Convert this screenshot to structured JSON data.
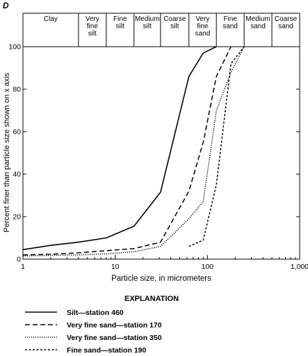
{
  "panel_label": "D",
  "chart_data": {
    "type": "line",
    "xscale": "log",
    "xlim": [
      1,
      1000
    ],
    "ylim": [
      0,
      100
    ],
    "xlabel": "Particle size, in micrometers",
    "ylabel": "Percent finer than particle size shown on x axis",
    "xticks": [
      {
        "value": 1,
        "label": "1"
      },
      {
        "value": 10,
        "label": "10"
      },
      {
        "value": 100,
        "label": "100"
      },
      {
        "value": 1000,
        "label": "1,000"
      }
    ],
    "yticks": [
      0,
      20,
      40,
      60,
      80,
      100
    ],
    "size_classes": [
      {
        "lines": [
          "Clay"
        ],
        "from": 1,
        "to": 4
      },
      {
        "lines": [
          "Very",
          "fine",
          "silt"
        ],
        "from": 4,
        "to": 8
      },
      {
        "lines": [
          "Fine",
          "silt"
        ],
        "from": 8,
        "to": 16
      },
      {
        "lines": [
          "Medium",
          "silt"
        ],
        "from": 16,
        "to": 31
      },
      {
        "lines": [
          "Coarse",
          "silt"
        ],
        "from": 31,
        "to": 63
      },
      {
        "lines": [
          "Very",
          "fine",
          "sand"
        ],
        "from": 63,
        "to": 125
      },
      {
        "lines": [
          "Fine",
          "sand"
        ],
        "from": 125,
        "to": 250
      },
      {
        "lines": [
          "Medium",
          "sand"
        ],
        "from": 250,
        "to": 500
      },
      {
        "lines": [
          "Coarse",
          "sand"
        ],
        "from": 500,
        "to": 1000
      }
    ],
    "series": [
      {
        "name": "Silt—station 460",
        "dash": "solid",
        "x": [
          1,
          2,
          4,
          8,
          16,
          31,
          63,
          90,
          125
        ],
        "y": [
          4.5,
          6.5,
          8,
          10,
          15.5,
          31.5,
          86,
          97,
          100
        ]
      },
      {
        "name": "Very fine sand—station 170",
        "dash": "dashed",
        "x": [
          1,
          2,
          4,
          8,
          16,
          31,
          63,
          90,
          125,
          180
        ],
        "y": [
          2,
          2.3,
          3,
          4,
          5,
          8,
          32,
          55,
          86,
          100
        ]
      },
      {
        "name": "Very fine sand—station 350",
        "dash": "dotted",
        "x": [
          1,
          2,
          4,
          8,
          16,
          31,
          63,
          90,
          125,
          180,
          250
        ],
        "y": [
          1.5,
          1.8,
          2,
          2.5,
          3.5,
          6,
          19,
          27,
          70,
          88,
          100
        ]
      },
      {
        "name": "Fine sand—station 190",
        "dash": "shortdash",
        "x": [
          63,
          90,
          125,
          180,
          250
        ],
        "y": [
          6,
          9,
          35,
          92,
          100
        ]
      }
    ],
    "explanation_title": "EXPLANATION"
  }
}
